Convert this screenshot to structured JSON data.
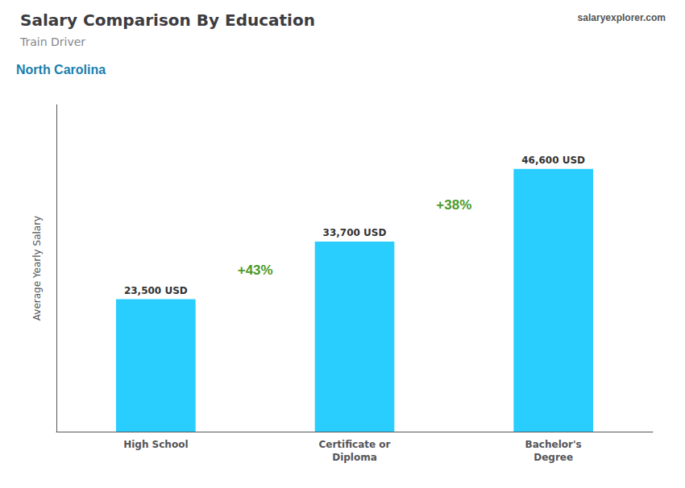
{
  "chart_data": {
    "type": "bar",
    "title": "Salary Comparison By Education",
    "subtitle": "Train Driver",
    "annotations": [
      {
        "text": "North Carolina"
      },
      {
        "text": "salaryexplorer.com"
      },
      {
        "text": "+43%",
        "between": [
          "High School",
          "Certificate or\nDiploma"
        ]
      },
      {
        "text": "+38%",
        "between": [
          "Certificate or\nDiploma",
          "Bachelor's\nDegree"
        ]
      }
    ],
    "ylabel": "Average Yearly Salary",
    "categories": [
      "High School",
      "Certificate or\nDiploma",
      "Bachelor's\nDegree"
    ],
    "values": [
      23500,
      33700,
      46600
    ],
    "value_labels": [
      "23,500 USD",
      "33,700 USD",
      "46,600 USD"
    ],
    "data_labels": true,
    "color": "#29CEFF",
    "ylim": [
      0,
      58000
    ],
    "grid": false,
    "tick_labels": "x"
  }
}
